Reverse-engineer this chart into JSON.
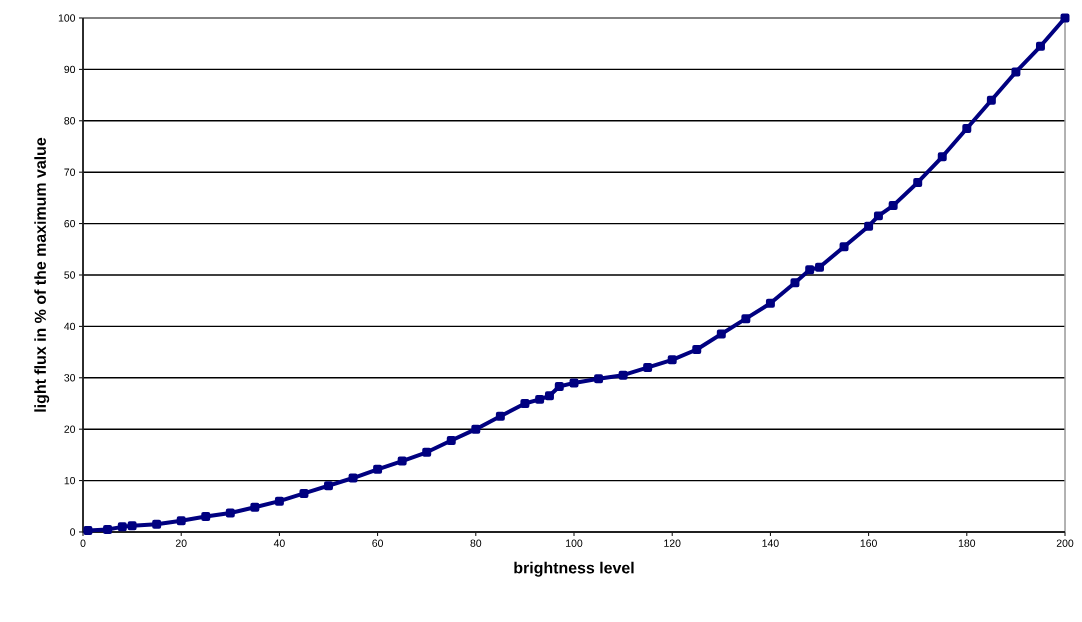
{
  "chart_data": {
    "type": "line",
    "xlabel": "brightness level",
    "ylabel": "light flux in % of the maximum value",
    "x": [
      1,
      5,
      8,
      10,
      15,
      20,
      25,
      30,
      35,
      40,
      45,
      50,
      55,
      60,
      65,
      70,
      75,
      80,
      85,
      90,
      93,
      95,
      97,
      100,
      105,
      110,
      115,
      120,
      125,
      130,
      135,
      140,
      145,
      148,
      150,
      155,
      160,
      162,
      165,
      170,
      175,
      180,
      185,
      190,
      195,
      200
    ],
    "series": [
      {
        "color": "#000080",
        "values": [
          0.3,
          0.5,
          1,
          1.2,
          1.5,
          2.2,
          3,
          3.7,
          4.8,
          6,
          7.5,
          9,
          10.5,
          12.2,
          13.8,
          15.5,
          17.8,
          20,
          22.5,
          25,
          25.8,
          26.5,
          28.3,
          29,
          29.8,
          30.5,
          32,
          33.5,
          35.5,
          38.5,
          41.5,
          44.5,
          48.5,
          51,
          51.5,
          55.5,
          59.5,
          61.5,
          63.5,
          68,
          73,
          78.5,
          84,
          89.5,
          94.5,
          100
        ]
      }
    ],
    "xlim": [
      0,
      200
    ],
    "ylim": [
      0,
      100
    ],
    "xticks": [
      0,
      20,
      40,
      60,
      80,
      100,
      120,
      140,
      160,
      180,
      200
    ],
    "yticks": [
      0,
      10,
      20,
      30,
      40,
      50,
      60,
      70,
      80,
      90,
      100
    ],
    "grid": "y",
    "marker": "square",
    "line_style": "solid"
  }
}
